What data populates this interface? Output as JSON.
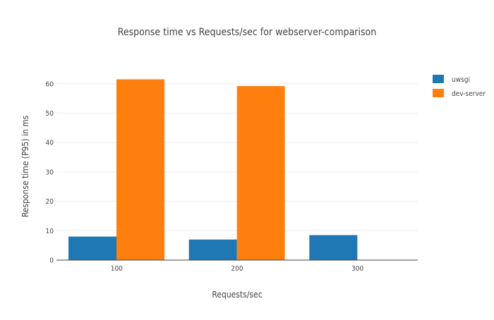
{
  "chart_data": {
    "type": "bar",
    "title": "Response time vs Requests/sec for webserver-comparison",
    "xlabel": "Requests/sec",
    "ylabel": "Response time (P95) in ms",
    "categories": [
      "100",
      "200",
      "300"
    ],
    "series": [
      {
        "name": "uwsgi",
        "color": "#1f77b4",
        "values": [
          8,
          7,
          8.5
        ]
      },
      {
        "name": "dev-server",
        "color": "#ff7f0e",
        "values": [
          61.5,
          59.2,
          null
        ]
      }
    ],
    "yticks": [
      "0",
      "10",
      "20",
      "30",
      "40",
      "50",
      "60"
    ],
    "ylim": [
      0,
      65
    ],
    "grid": true,
    "legend_position": "top-right"
  }
}
